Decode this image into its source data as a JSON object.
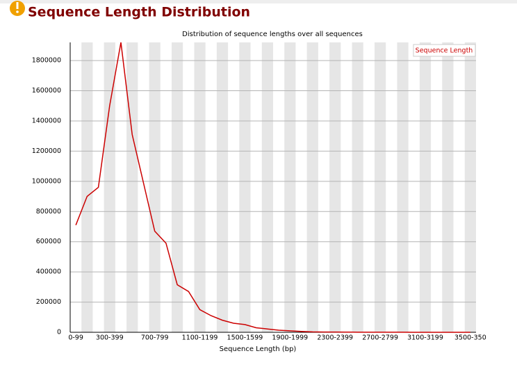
{
  "header": {
    "title": "Sequence Length Distribution"
  },
  "chart_data": {
    "type": "line",
    "title": "Distribution of sequence lengths over all sequences",
    "x_label": "Sequence Length (bp)",
    "categories": [
      "0-99",
      null,
      null,
      "300-399",
      null,
      null,
      null,
      "700-799",
      null,
      null,
      null,
      "1100-1199",
      null,
      null,
      null,
      "1500-1599",
      null,
      null,
      null,
      "1900-1999",
      null,
      null,
      null,
      "2300-2399",
      null,
      null,
      null,
      "2700-2799",
      null,
      null,
      null,
      "3100-3199",
      null,
      null,
      null,
      "3500-350"
    ],
    "series": [
      {
        "name": "Sequence Length",
        "color": "#cc0000",
        "values": [
          710000,
          900000,
          960000,
          1500000,
          1920000,
          1310000,
          990000,
          670000,
          590000,
          315000,
          270000,
          150000,
          110000,
          80000,
          60000,
          51000,
          30000,
          22000,
          14000,
          10000,
          6000,
          3000,
          2000,
          1500,
          1000,
          800,
          600,
          500,
          400,
          300,
          250,
          200,
          150,
          100,
          80,
          50
        ]
      }
    ],
    "ylim": [
      0,
      1920000
    ],
    "yticks": [
      0,
      200000,
      400000,
      600000,
      800000,
      1000000,
      1200000,
      1400000,
      1600000,
      1800000
    ],
    "grid": true,
    "legend": "top-right"
  }
}
